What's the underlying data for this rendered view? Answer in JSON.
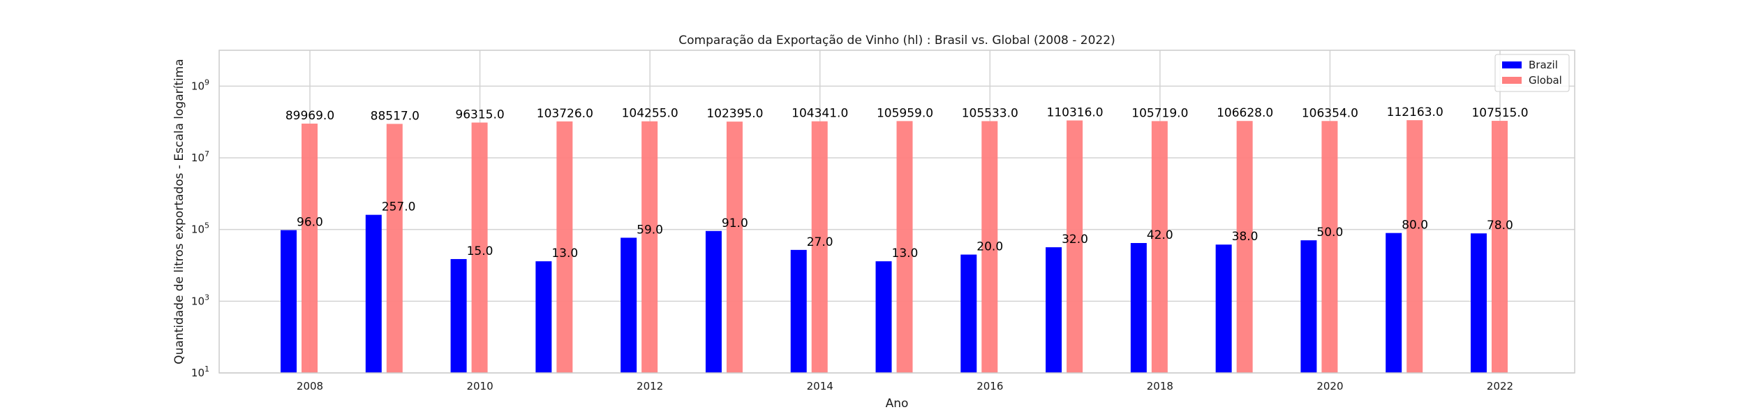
{
  "chart_data": {
    "type": "bar",
    "title": "Comparação da Exportação de Vinho (hl) : Brasil vs. Global (2008 - 2022)",
    "xlabel": "Ano",
    "ylabel": "Quantidade de litros exportados - Escala logarítima",
    "yscale": "log",
    "ylim": [
      10,
      10000000000
    ],
    "y_ticks": [
      {
        "value": 10,
        "base": "10",
        "exp": "1"
      },
      {
        "value": 1000,
        "base": "10",
        "exp": "3"
      },
      {
        "value": 100000,
        "base": "10",
        "exp": "5"
      },
      {
        "value": 10000000,
        "base": "10",
        "exp": "7"
      },
      {
        "value": 1000000000,
        "base": "10",
        "exp": "9"
      }
    ],
    "x": [
      2008,
      2009,
      2010,
      2011,
      2012,
      2013,
      2014,
      2015,
      2016,
      2017,
      2018,
      2019,
      2020,
      2021,
      2022
    ],
    "x_tick_labels": [
      "2008",
      "2010",
      "2012",
      "2014",
      "2016",
      "2018",
      "2020",
      "2022"
    ],
    "grid": true,
    "legend_position": "top-right",
    "series": [
      {
        "name": "Brazil",
        "color": "#0000ff",
        "values": [
          96000,
          257000,
          15000,
          13000,
          59000,
          91000,
          27000,
          13000,
          20000,
          32000,
          42000,
          38000,
          50000,
          80000,
          78000
        ],
        "labels": [
          "96.0",
          "257.0",
          "15.0",
          "13.0",
          "59.0",
          "91.0",
          "27.0",
          "13.0",
          "20.0",
          "32.0",
          "42.0",
          "38.0",
          "50.0",
          "80.0",
          "78.0"
        ]
      },
      {
        "name": "Global",
        "color": "#ff7f7f",
        "values": [
          89969000,
          88517000,
          96315000,
          103726000,
          104255000,
          102395000,
          104341000,
          105959000,
          105533000,
          110316000,
          105719000,
          106628000,
          106354000,
          112163000,
          107515000
        ],
        "labels": [
          "89969.0",
          "88517.0",
          "96315.0",
          "103726.0",
          "104255.0",
          "102395.0",
          "104341.0",
          "105959.0",
          "105533.0",
          "110316.0",
          "105719.0",
          "106628.0",
          "106354.0",
          "112163.0",
          "107515.0"
        ]
      }
    ]
  }
}
